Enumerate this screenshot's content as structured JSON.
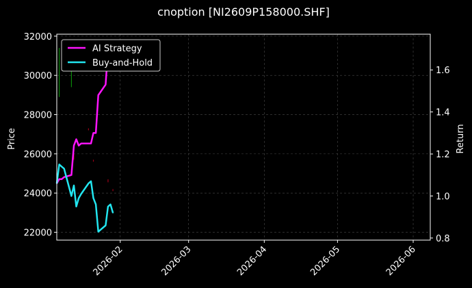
{
  "chart_data": {
    "type": "line",
    "title": "cnoption [NI2609P158000.SHF]",
    "xlabel": "",
    "ylabel": "Price",
    "y2label": "Return",
    "xlim": [
      "2026-01-06",
      "2026-06-08"
    ],
    "ylim": [
      21600,
      32100
    ],
    "y2lim": [
      0.79,
      1.77
    ],
    "x_ticks": [
      "2026-02",
      "2026-03",
      "2026-04",
      "2026-05",
      "2026-06"
    ],
    "y_ticks": [
      22000,
      24000,
      26000,
      28000,
      30000,
      32000
    ],
    "y2_ticks": [
      0.8,
      1.0,
      1.2,
      1.4,
      1.6
    ],
    "grid": true,
    "legend": {
      "position": "top-left",
      "entries": [
        "AI Strategy",
        "Buy-and-Hold"
      ]
    },
    "colors": {
      "background": "#000000",
      "ai": "#ff14ff",
      "bh": "#22e6f0",
      "grid": "#4a4a4a",
      "candle_up": "#0a8a0a",
      "candle_down": "#a00018"
    },
    "series": [
      {
        "name": "AI Strategy",
        "axis": "right",
        "x": [
          "2026-01-06",
          "2026-01-07",
          "2026-01-08",
          "2026-01-09",
          "2026-01-12",
          "2026-01-13",
          "2026-01-14",
          "2026-01-15",
          "2026-01-16",
          "2026-01-19",
          "2026-01-20",
          "2026-01-21",
          "2026-01-22",
          "2026-01-23",
          "2026-01-26",
          "2026-01-27",
          "2026-01-28",
          "2026-01-29"
        ],
        "y": [
          1.06,
          1.08,
          1.08,
          1.09,
          1.1,
          1.24,
          1.27,
          1.24,
          1.25,
          1.25,
          1.25,
          1.3,
          1.3,
          1.48,
          1.53,
          1.7,
          1.72,
          1.7
        ]
      },
      {
        "name": "Buy-and-Hold",
        "axis": "right",
        "x": [
          "2026-01-06",
          "2026-01-07",
          "2026-01-08",
          "2026-01-09",
          "2026-01-12",
          "2026-01-13",
          "2026-01-14",
          "2026-01-15",
          "2026-01-16",
          "2026-01-19",
          "2026-01-20",
          "2026-01-21",
          "2026-01-22",
          "2026-01-23",
          "2026-01-26",
          "2026-01-27",
          "2026-01-28",
          "2026-01-29"
        ],
        "y": [
          1.06,
          1.15,
          1.14,
          1.13,
          1.0,
          1.05,
          0.95,
          0.99,
          1.01,
          1.06,
          1.07,
          0.99,
          0.96,
          0.83,
          0.86,
          0.95,
          0.96,
          0.92
        ]
      }
    ],
    "candles": [
      {
        "x": "2026-01-07",
        "low": 28900,
        "high": 31400,
        "dir": "up"
      },
      {
        "x": "2026-01-12",
        "low": 29400,
        "high": 31600,
        "dir": "up"
      },
      {
        "x": "2026-01-13",
        "low": 25700,
        "high": 26000,
        "dir": "down"
      },
      {
        "x": "2026-01-19",
        "low": 27200,
        "high": 27300,
        "dir": "down"
      },
      {
        "x": "2026-01-21",
        "low": 25600,
        "high": 25700,
        "dir": "down"
      },
      {
        "x": "2026-01-27",
        "low": 24550,
        "high": 24700,
        "dir": "down"
      },
      {
        "x": "2026-01-29",
        "low": 24100,
        "high": 24200,
        "dir": "down"
      }
    ]
  }
}
